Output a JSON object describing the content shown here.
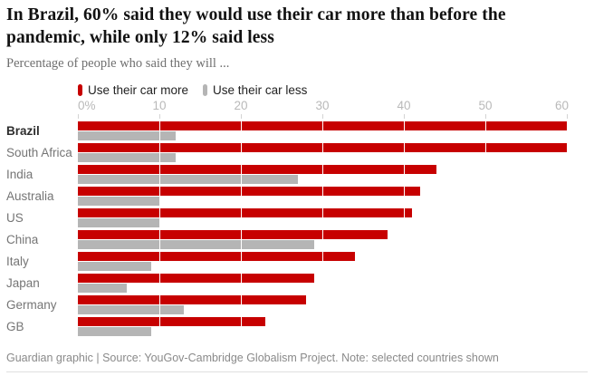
{
  "header": {
    "title": "In Brazil, 60% said they would use their car more than before the pandemic, while only 12% said less",
    "subtitle": "Percentage of people who said they will ..."
  },
  "legend": {
    "more_label": "Use their car more",
    "less_label": "Use their car less"
  },
  "chart_data": {
    "type": "bar",
    "orientation": "horizontal",
    "title": "Percentage of people who said they will ...",
    "categories": [
      "Brazil",
      "South Africa",
      "India",
      "Australia",
      "US",
      "China",
      "Italy",
      "Japan",
      "Germany",
      "GB"
    ],
    "series": [
      {
        "name": "Use their car more",
        "color": "#c70000",
        "values": [
          60,
          60,
          44,
          42,
          41,
          38,
          34,
          29,
          28,
          23
        ]
      },
      {
        "name": "Use their car less",
        "color": "#b5b5b5",
        "values": [
          12,
          12,
          27,
          10,
          10,
          29,
          9,
          6,
          13,
          9
        ]
      }
    ],
    "x_ticks": {
      "labels": [
        "0%",
        "10",
        "20",
        "30",
        "40",
        "50",
        "60"
      ],
      "values": [
        0,
        10,
        20,
        30,
        40,
        50,
        60
      ]
    },
    "xlim": [
      0,
      60
    ],
    "grid": "vertical-white-over-bars",
    "legend_position": "top",
    "highlight_category": "Brazil"
  },
  "footer": {
    "text": "Guardian graphic | Source: YouGov-Cambridge Globalism Project. Note: selected countries shown"
  },
  "colors": {
    "more": "#c70000",
    "less": "#b5b5b5"
  }
}
